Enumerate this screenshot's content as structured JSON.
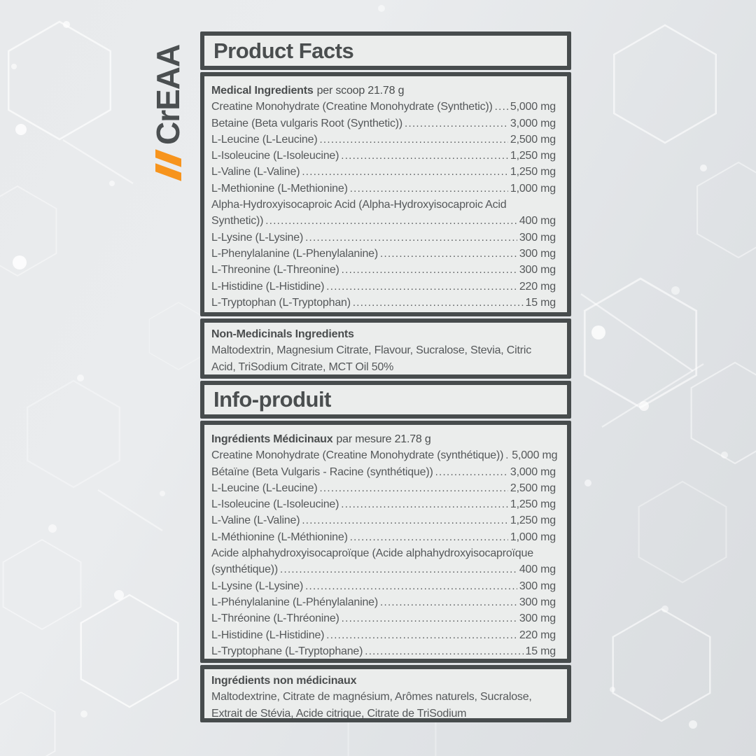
{
  "brand": {
    "name": "CrEAA",
    "accent_orange": "#f7941d",
    "text_color": "#4b4f51"
  },
  "colors": {
    "panel_border": "#474c4d",
    "panel_background": "#ebedec",
    "body_text": "#55585a"
  },
  "label": {
    "en": {
      "title": "Product Facts",
      "medicinal_heading": "Medical Ingredients",
      "medicinal_heading_suffix": "per scoop 21.78 g",
      "medicinal_rows": [
        {
          "name": "Creatine Monohydrate (Creatine Monohydrate (Synthetic))",
          "value": "5,000 mg"
        },
        {
          "name": "Betaine (Beta vulgaris Root (Synthetic))",
          "value": "3,000 mg"
        },
        {
          "name": "L-Leucine (L-Leucine)",
          "value": "2,500 mg"
        },
        {
          "name": "L-Isoleucine (L-Isoleucine)",
          "value": "1,250 mg"
        },
        {
          "name": "L-Valine (L-Valine)",
          "value": "1,250 mg"
        },
        {
          "name": "L-Methionine (L-Methionine)",
          "value": "1,000 mg"
        },
        {
          "name": "Alpha-Hydroxyisocaproic Acid (Alpha-Hydroxyisocaproic Acid",
          "name2": "Synthetic))",
          "value": "400 mg"
        },
        {
          "name": "L-Lysine (L-Lysine)",
          "value": "300 mg"
        },
        {
          "name": "L-Phenylalanine (L-Phenylalanine)",
          "value": "300 mg"
        },
        {
          "name": "L-Threonine (L-Threonine)",
          "value": "300 mg"
        },
        {
          "name": "L-Histidine (L-Histidine)",
          "value": "220 mg"
        },
        {
          "name": "L-Tryptophan (L-Tryptophan)",
          "value": "15 mg"
        }
      ],
      "non_medicinal_heading": "Non-Medicinals Ingredients",
      "non_medicinal_text": "Maltodextrin, Magnesium Citrate, Flavour, Sucralose, Stevia, Citric Acid, TriSodium Citrate, MCT Oil 50%"
    },
    "fr": {
      "title": "Info-produit",
      "medicinal_heading": "Ingrédients Médicinaux",
      "medicinal_heading_suffix": "par mesure 21.78 g",
      "medicinal_rows": [
        {
          "name": "Creatine Monohydrate (Creatine Monohydrate (synthétique))",
          "value": "5,000 mg"
        },
        {
          "name": "Bétaïne (Beta Vulgaris - Racine (synthétique))",
          "value": "3,000 mg"
        },
        {
          "name": "L-Leucine (L-Leucine)",
          "value": "2,500 mg"
        },
        {
          "name": "L-Isoleucine (L-Isoleucine)",
          "value": "1,250 mg"
        },
        {
          "name": "L-Valine (L-Valine)",
          "value": "1,250 mg"
        },
        {
          "name": "L-Méthionine (L-Méthionine)",
          "value": "1,000 mg"
        },
        {
          "name": "Acide alphahydroxyisocaproïque (Acide alphahydroxyisocaproïque",
          "name2": "(synthétique))",
          "value": "400 mg"
        },
        {
          "name": "L-Lysine (L-Lysine)",
          "value": "300 mg"
        },
        {
          "name": "L-Phénylalanine (L-Phénylalanine)",
          "value": "300 mg"
        },
        {
          "name": "L-Thréonine (L-Thréonine)",
          "value": "300 mg"
        },
        {
          "name": "L-Histidine (L-Histidine)",
          "value": "220 mg"
        },
        {
          "name": "L-Tryptophane (L-Tryptophane)",
          "value": "15 mg"
        }
      ],
      "non_medicinal_heading": "Ingrédients non médicinaux",
      "non_medicinal_text": "Maltodextrine, Citrate de magnésium, Arômes naturels, Sucralose, Extrait de Stévia, Acide citrique, Citrate de TriSodium"
    }
  }
}
